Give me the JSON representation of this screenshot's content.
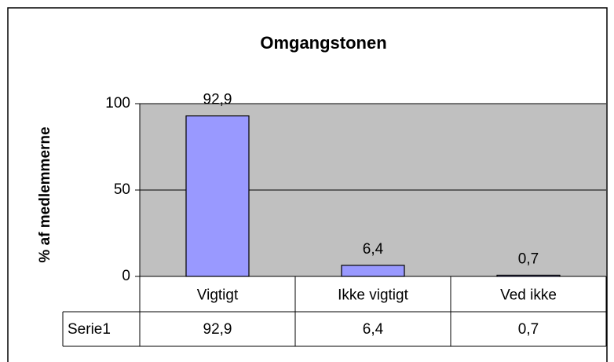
{
  "chart_data": {
    "type": "bar",
    "title": "Omgangstonen",
    "y_label": "% af medlemmerne",
    "categories": [
      "Vigtigt",
      "Ikke vigtigt",
      "Ved ikke"
    ],
    "series": [
      {
        "name": "Serie1",
        "color": "#9999ff",
        "values": [
          92.9,
          6.4,
          0.7
        ],
        "value_labels": [
          "92,9",
          "6,4",
          "0,7"
        ]
      }
    ],
    "ylim": [
      0,
      100
    ],
    "yticks": [
      0,
      50,
      100
    ],
    "grid": true,
    "data_table": true
  }
}
